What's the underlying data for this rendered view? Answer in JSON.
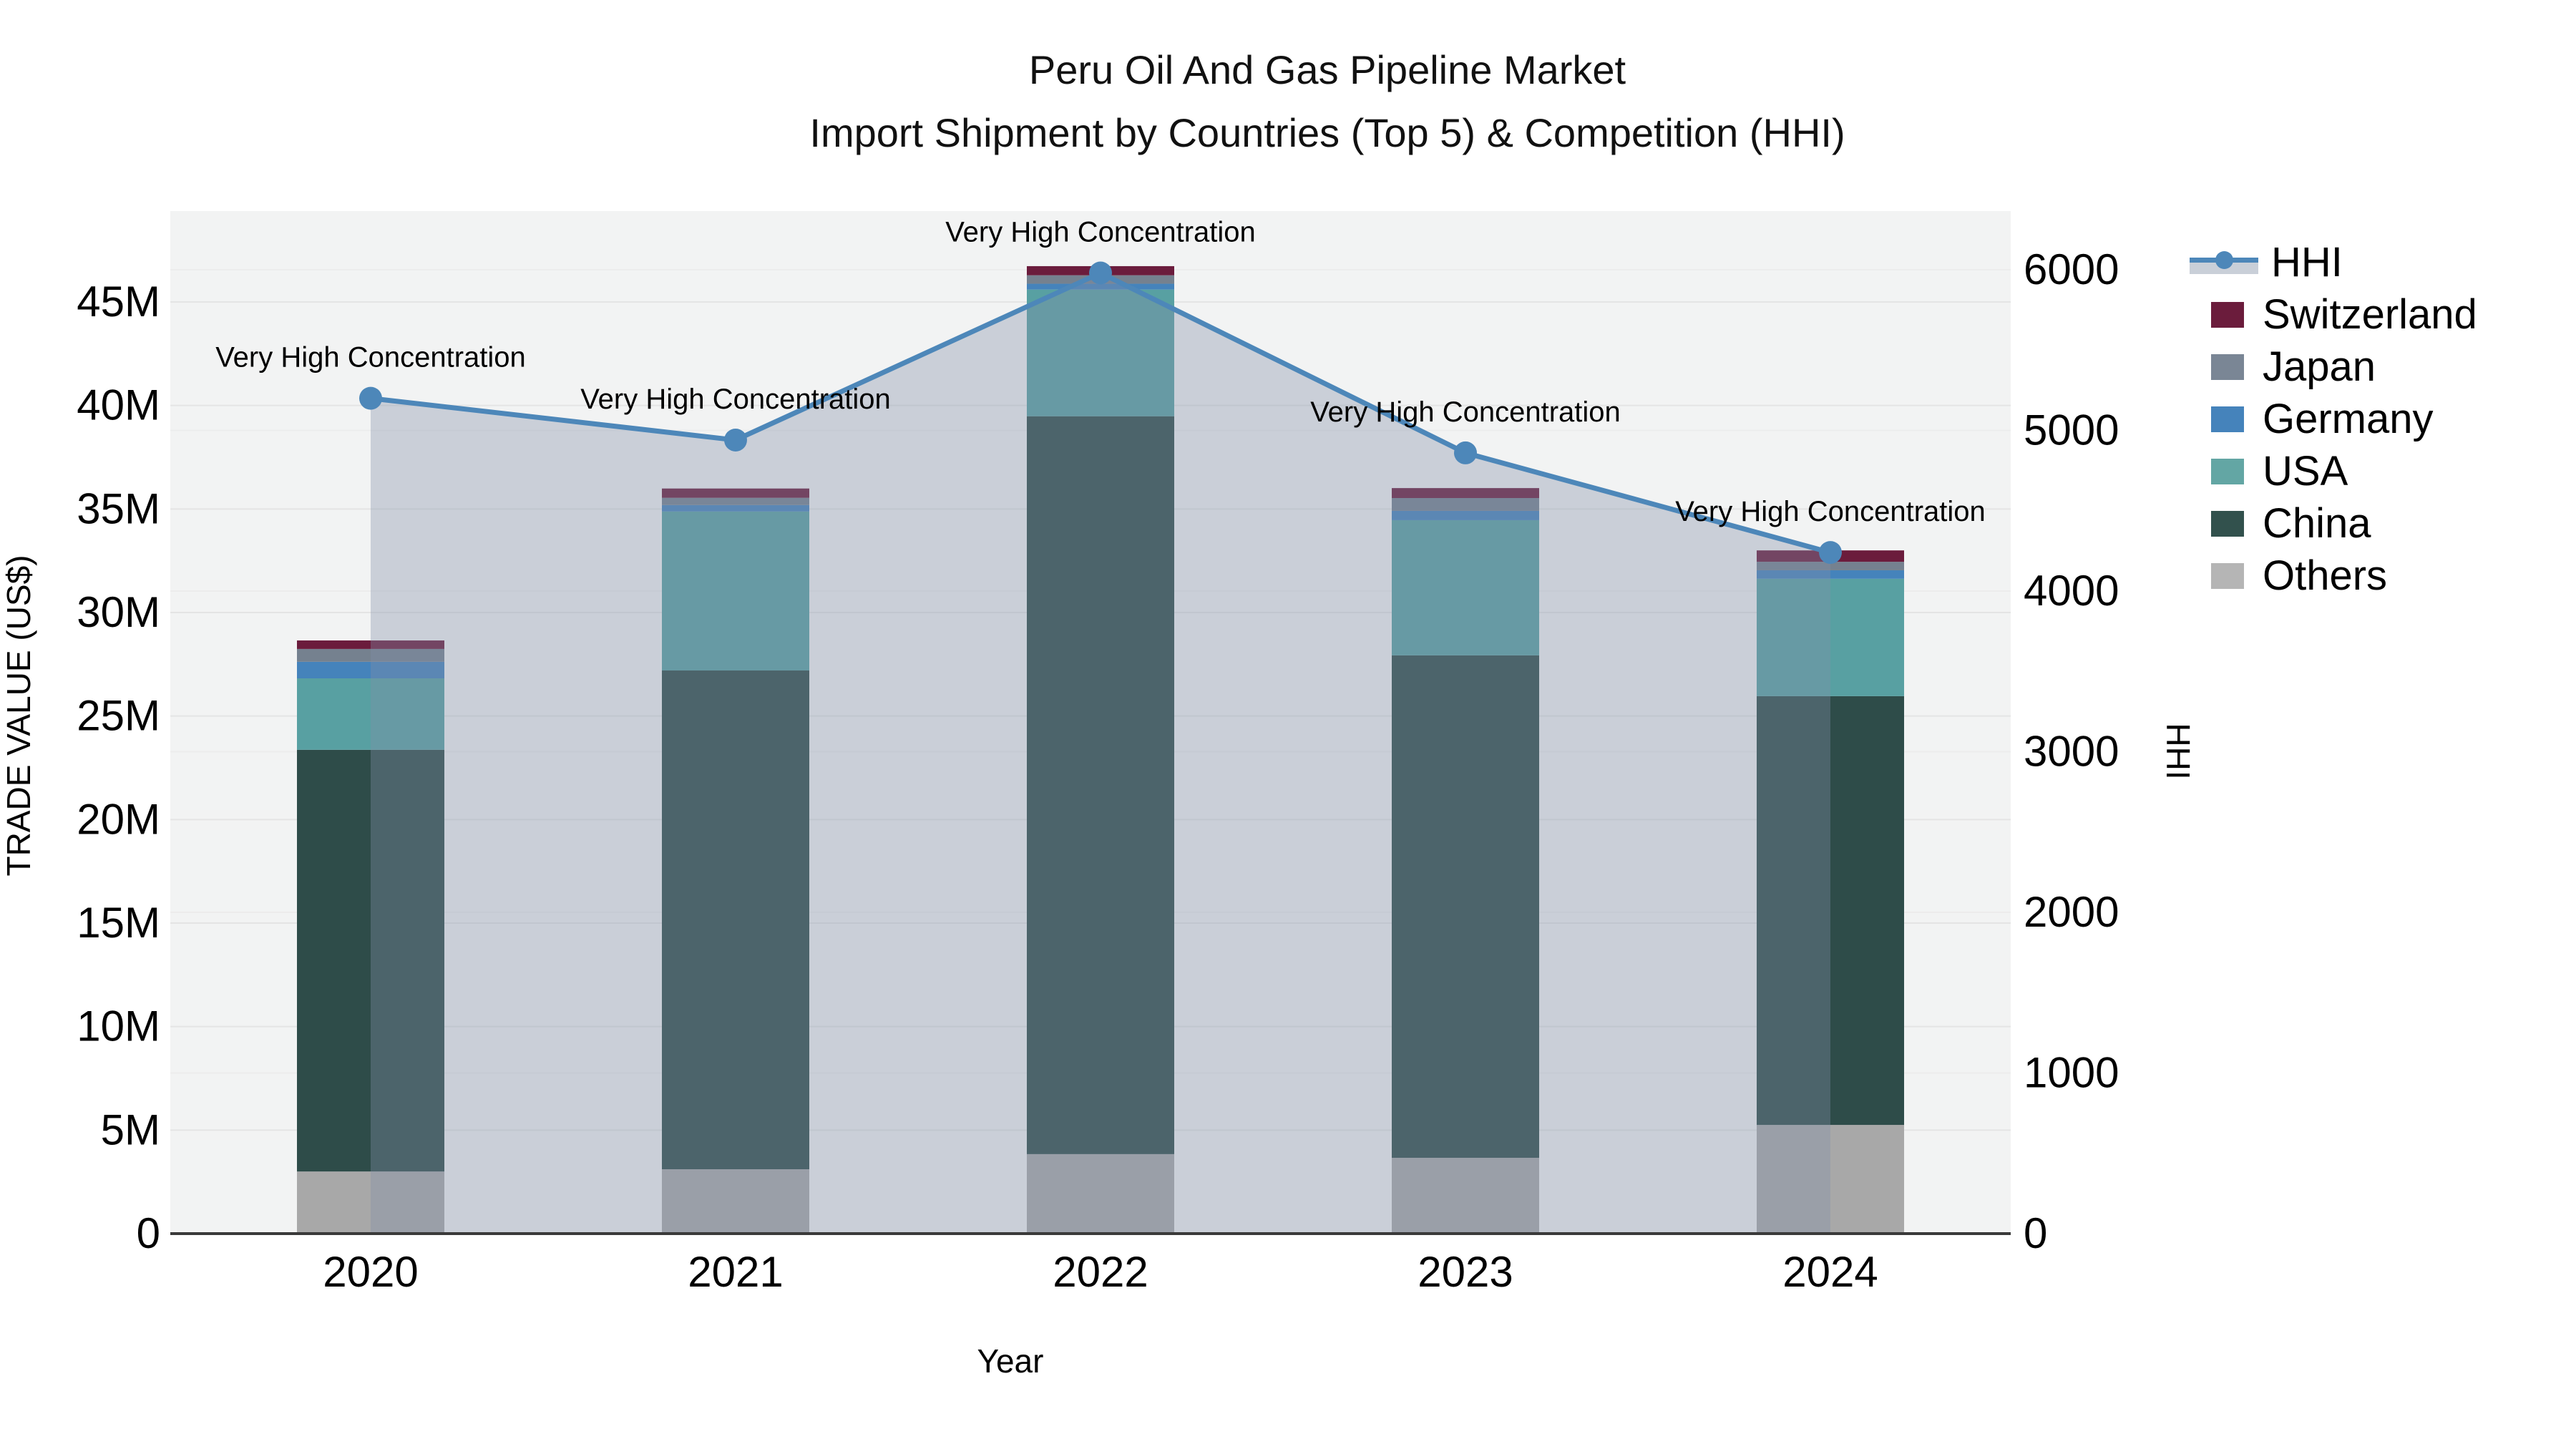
{
  "title": {
    "line1": "Peru Oil And Gas Pipeline Market",
    "line2": "Import Shipment by Countries (Top 5) & Competition (HHI)"
  },
  "axes": {
    "left": {
      "title": "TRADE VALUE (US$)",
      "ticks": [
        "0",
        "5M",
        "10M",
        "15M",
        "20M",
        "25M",
        "30M",
        "35M",
        "40M",
        "45M"
      ],
      "tick_values_m": [
        0,
        5,
        10,
        15,
        20,
        25,
        30,
        35,
        40,
        45
      ]
    },
    "right": {
      "title": "HHI",
      "ticks": [
        "0",
        "1000",
        "2000",
        "3000",
        "4000",
        "5000",
        "6000"
      ],
      "tick_values": [
        0,
        1000,
        2000,
        3000,
        4000,
        5000,
        6000
      ]
    },
    "bottom": {
      "title": "Year"
    }
  },
  "chart_data": {
    "type": "bar",
    "subtype": "stacked-bars-with-line-area",
    "categories": [
      "2020",
      "2021",
      "2022",
      "2023",
      "2024"
    ],
    "value_unit": "millions USD",
    "series": [
      {
        "name": "Others",
        "color": "#a8a8a8",
        "values": [
          3.0,
          3.11,
          3.84,
          3.66,
          5.25
        ]
      },
      {
        "name": "China",
        "color": "#2e4c49",
        "values": [
          20.37,
          24.09,
          35.64,
          24.27,
          20.71
        ]
      },
      {
        "name": "USA",
        "color": "#58a0a2",
        "values": [
          3.45,
          7.68,
          6.12,
          6.53,
          5.67
        ]
      },
      {
        "name": "Germany",
        "color": "#4583bb",
        "values": [
          0.8,
          0.31,
          0.28,
          0.45,
          0.41
        ]
      },
      {
        "name": "Japan",
        "color": "#75818f",
        "values": [
          0.62,
          0.35,
          0.41,
          0.62,
          0.41
        ]
      },
      {
        "name": "Switzerland",
        "color": "#6b1c3c",
        "values": [
          0.41,
          0.45,
          0.44,
          0.48,
          0.55
        ]
      }
    ],
    "line_series": {
      "name": "HHI",
      "color": "#4d87b9",
      "area_fill": "rgba(130,145,168,0.36)",
      "values": [
        5200,
        4940,
        5980,
        4860,
        4240
      ]
    },
    "annotations": [
      {
        "year": "2020",
        "text": "Very High Concentration"
      },
      {
        "year": "2021",
        "text": "Very High Concentration"
      },
      {
        "year": "2022",
        "text": "Very High Concentration"
      },
      {
        "year": "2023",
        "text": "Very High Concentration"
      },
      {
        "year": "2024",
        "text": "Very High Concentration"
      }
    ],
    "ylim_left_m": [
      0,
      45
    ],
    "ylim_right": [
      0,
      6000
    ],
    "grid": true,
    "legend_position": "right",
    "plot_bg": "#f2f3f3",
    "grid_color": "#e4e4e4",
    "baseline_color": "#3a3a3a"
  },
  "legend": {
    "items": [
      {
        "label": "HHI",
        "symbol": "line",
        "color": "#4d87b9"
      },
      {
        "label": "Switzerland",
        "symbol": "box",
        "color": "#6b1c3c"
      },
      {
        "label": "Japan",
        "symbol": "box",
        "color": "#7a8695"
      },
      {
        "label": "Germany",
        "symbol": "box",
        "color": "#4583bb"
      },
      {
        "label": "USA",
        "symbol": "box",
        "color": "#63a6a4"
      },
      {
        "label": "China",
        "symbol": "box",
        "color": "#32514d"
      },
      {
        "label": "Others",
        "symbol": "box",
        "color": "#b5b5b5"
      }
    ]
  }
}
